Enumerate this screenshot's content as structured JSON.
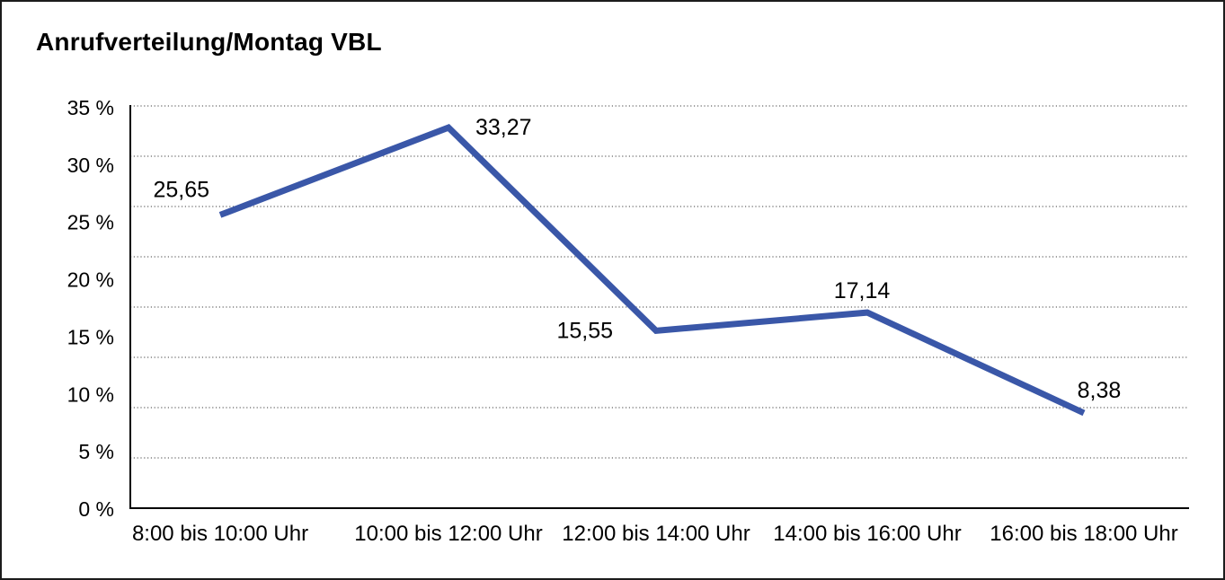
{
  "chart_data": {
    "type": "line",
    "title": "Anrufverteilung/Montag VBL",
    "categories": [
      "8:00 bis 10:00 Uhr",
      "10:00 bis 12:00 Uhr",
      "12:00 bis 14:00 Uhr",
      "14:00 bis 16:00 Uhr",
      "16:00 bis 18:00 Uhr"
    ],
    "values": [
      25.65,
      33.27,
      15.55,
      17.14,
      8.38
    ],
    "point_labels": [
      "25,65",
      "33,27",
      "15,55",
      "17,14",
      "8,38"
    ],
    "ytick_labels": [
      "35 %",
      "30 %",
      "25 %",
      "20 %",
      "15 %",
      "10 %",
      "5 %",
      "0 %"
    ],
    "ytick_values": [
      35,
      30,
      25,
      20,
      15,
      10,
      5,
      0
    ],
    "ylim": [
      0,
      35
    ],
    "ytick_step": 5,
    "xlabel": "",
    "ylabel": "",
    "legend": "none",
    "grid": "horizontal-dotted",
    "colors": {
      "line": "#3A57A8",
      "text": "#000000",
      "axis": "#000000",
      "gridline": "#666666",
      "frame_border": "#1c1c1c",
      "background": "#ffffff"
    }
  }
}
